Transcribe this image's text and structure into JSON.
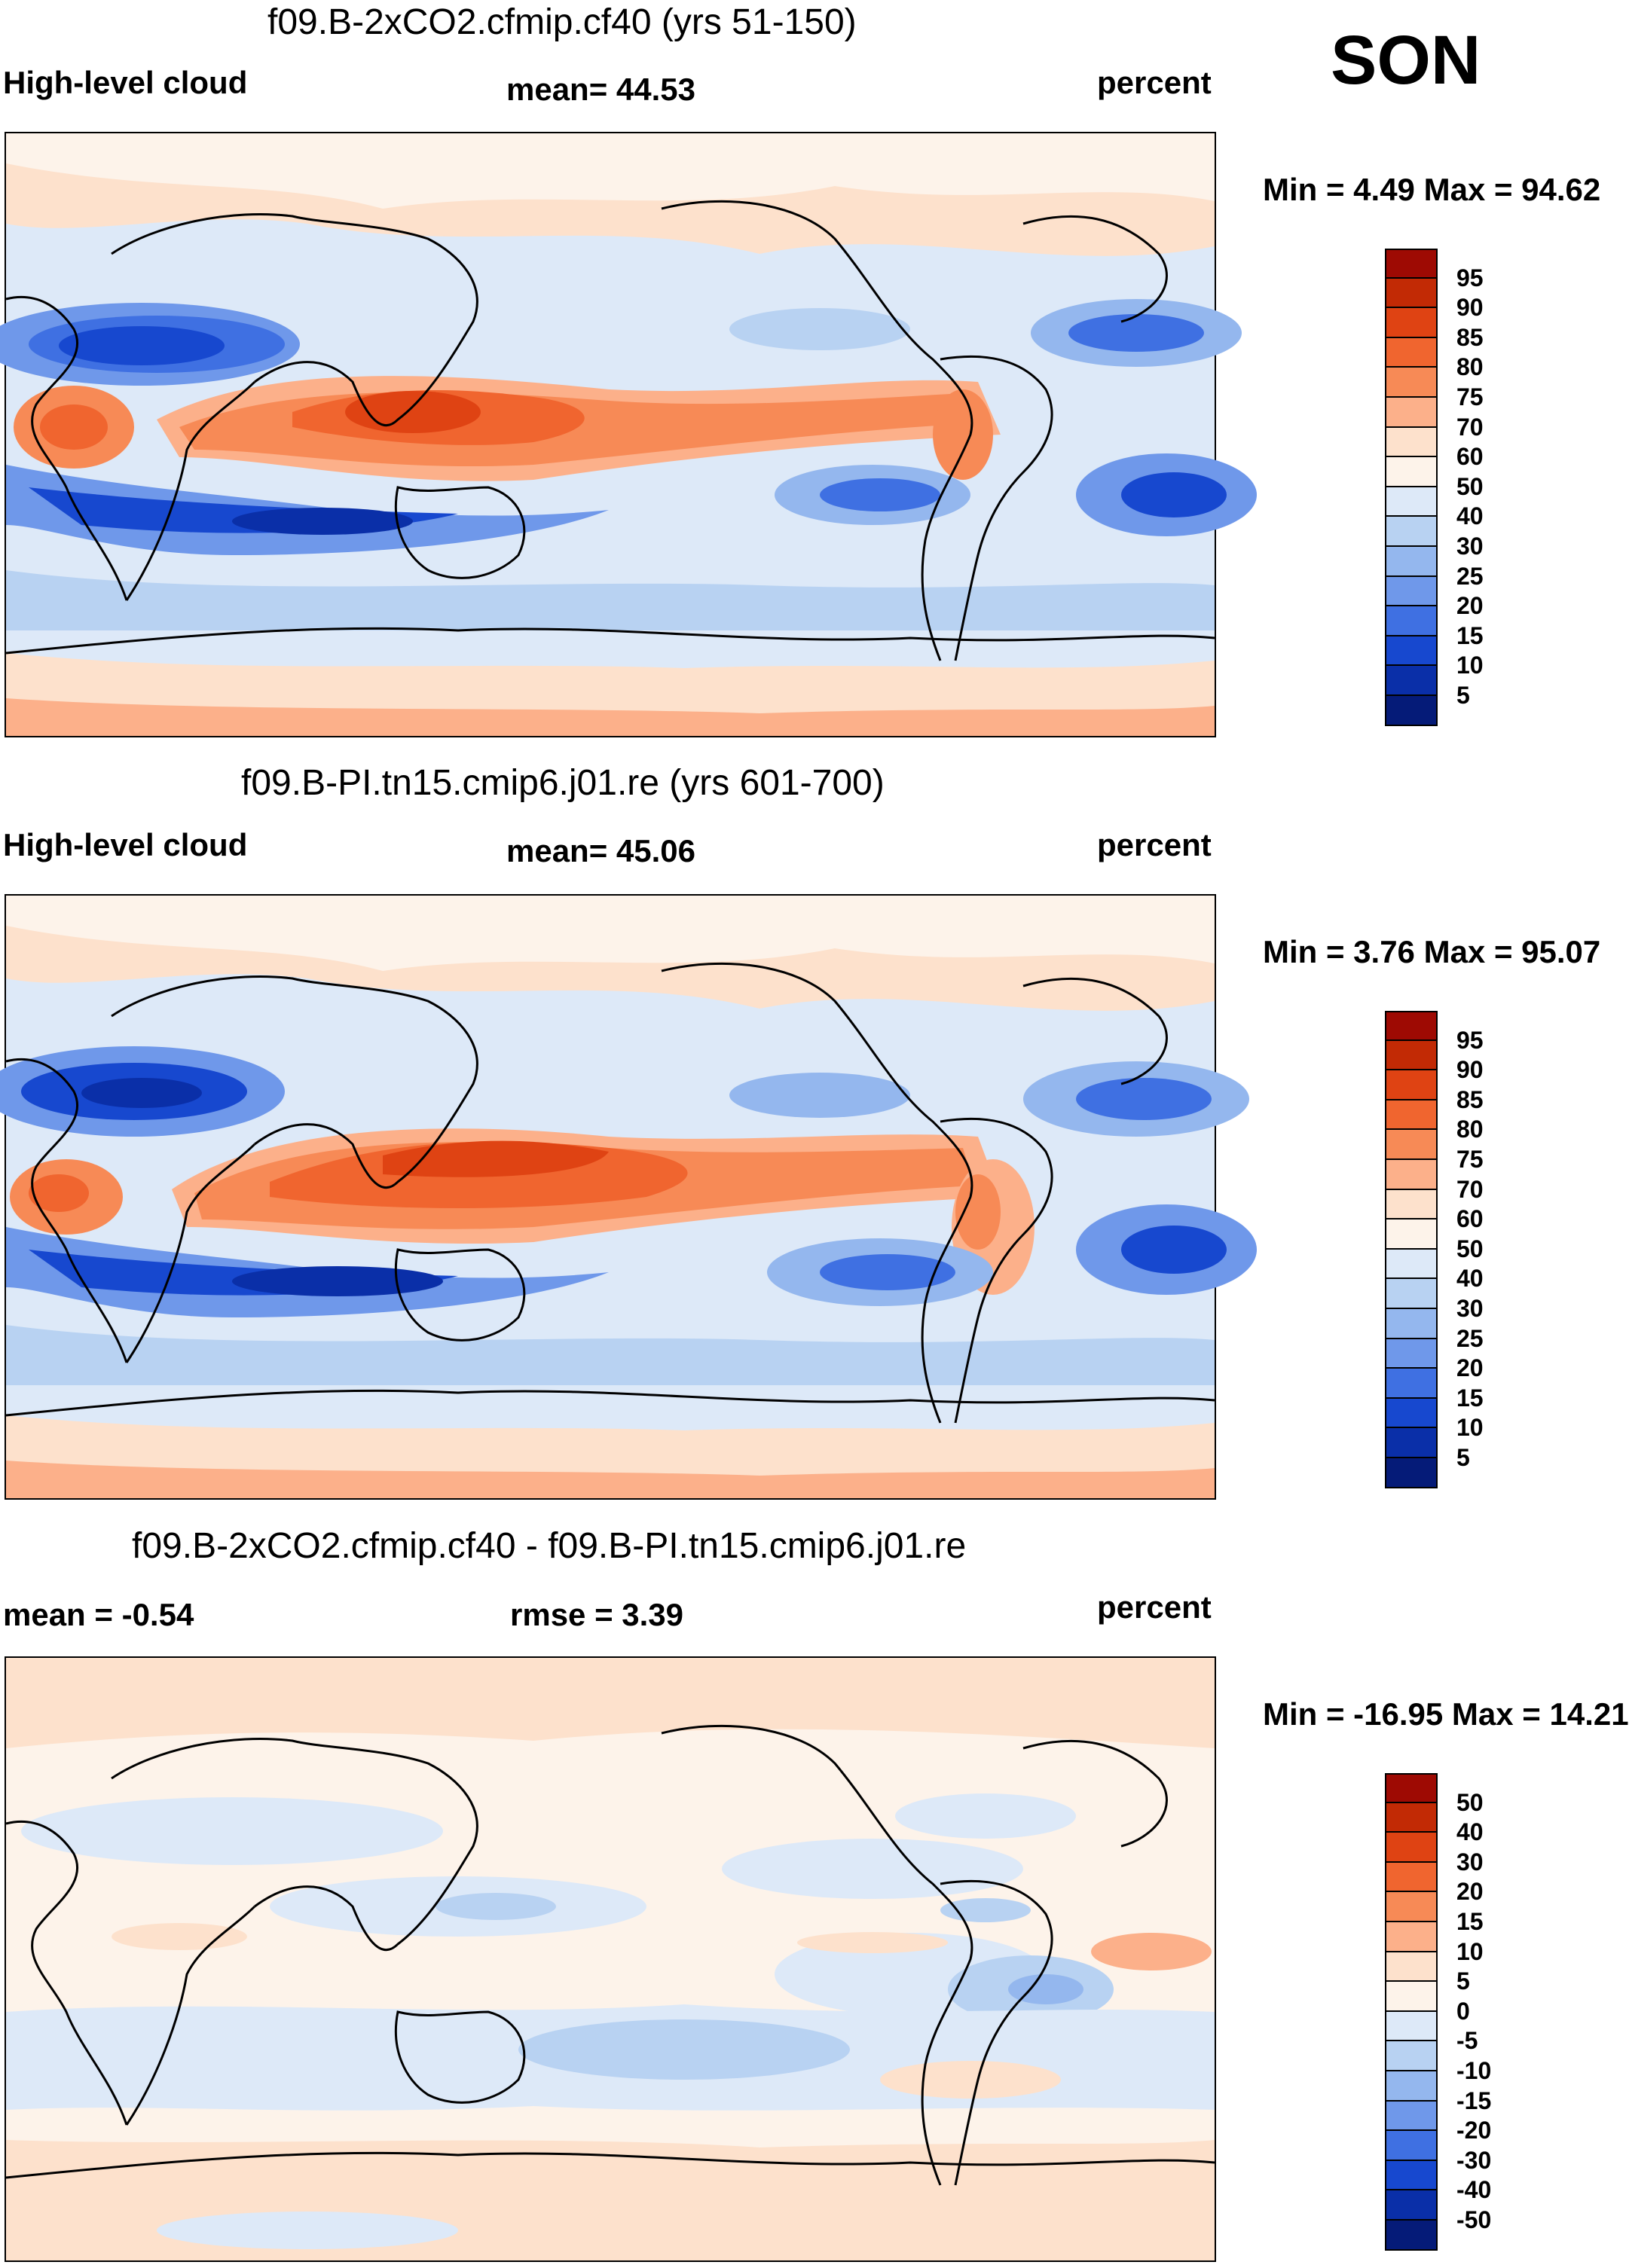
{
  "season": "SON",
  "panels": [
    {
      "id": "top",
      "title": "f09.B-2xCO2.cfmip.cf40 (yrs 51-150)",
      "left_label": "High-level cloud",
      "center_label": "mean=  44.53",
      "units": "percent",
      "minmax": "Min =   4.49 Max =  94.62",
      "levels": [
        "95",
        "90",
        "85",
        "80",
        "75",
        "70",
        "60",
        "50",
        "40",
        "30",
        "25",
        "20",
        "15",
        "10",
        "5"
      ],
      "colors": [
        "#9e0a03",
        "#c22a05",
        "#df4313",
        "#f0652f",
        "#f78a56",
        "#fcb08a",
        "#fde1cc",
        "#fdf3ea",
        "#dde9f8",
        "#b8d2f2",
        "#94b7ee",
        "#6f98ea",
        "#3f70e2",
        "#1748cf",
        "#0a2fa8",
        "#051b78"
      ]
    },
    {
      "id": "middle",
      "title": "f09.B-PI.tn15.cmip6.j01.re (yrs 601-700)",
      "left_label": "High-level cloud",
      "center_label": "mean=  45.06",
      "units": "percent",
      "minmax": "Min =   3.76 Max =  95.07",
      "levels": [
        "95",
        "90",
        "85",
        "80",
        "75",
        "70",
        "60",
        "50",
        "40",
        "30",
        "25",
        "20",
        "15",
        "10",
        "5"
      ],
      "colors": [
        "#9e0a03",
        "#c22a05",
        "#df4313",
        "#f0652f",
        "#f78a56",
        "#fcb08a",
        "#fde1cc",
        "#fdf3ea",
        "#dde9f8",
        "#b8d2f2",
        "#94b7ee",
        "#6f98ea",
        "#3f70e2",
        "#1748cf",
        "#0a2fa8",
        "#051b78"
      ]
    },
    {
      "id": "bottom",
      "title": "f09.B-2xCO2.cfmip.cf40 - f09.B-PI.tn15.cmip6.j01.re",
      "left_label": "mean =  -0.54",
      "center_label": "rmse =    3.39",
      "units": "percent",
      "minmax": "Min = -16.95 Max =  14.21",
      "levels": [
        "50",
        "40",
        "30",
        "20",
        "15",
        "10",
        "5",
        "0",
        "-5",
        "-10",
        "-15",
        "-20",
        "-30",
        "-40",
        "-50"
      ],
      "colors": [
        "#9e0a03",
        "#c22a05",
        "#df4313",
        "#f0652f",
        "#f78a56",
        "#fcb08a",
        "#fde1cc",
        "#fdf3ea",
        "#dde9f8",
        "#b8d2f2",
        "#94b7ee",
        "#6f98ea",
        "#3f70e2",
        "#1748cf",
        "#0a2fa8",
        "#051b78"
      ]
    }
  ]
}
